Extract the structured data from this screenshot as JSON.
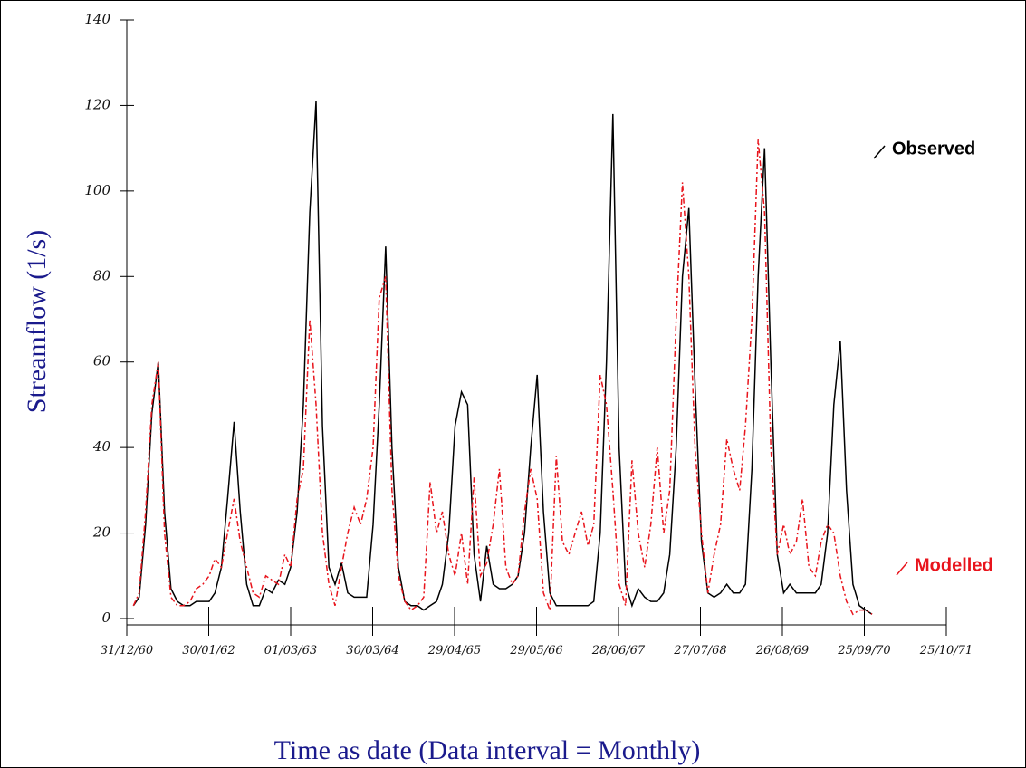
{
  "chart_data": {
    "type": "line",
    "y_label": "Streamflow (1/s)",
    "x_label": "Time as date (Data interval = Monthly)",
    "ylim": [
      0,
      140
    ],
    "yticks": [
      0,
      20,
      40,
      60,
      80,
      100,
      120,
      140
    ],
    "xlim": [
      "1960-12-31",
      "1971-10-25"
    ],
    "xticks": [
      {
        "value": "1960-12-31",
        "label": "31/12/60"
      },
      {
        "value": "1962-01-30",
        "label": "30/01/62"
      },
      {
        "value": "1963-03-01",
        "label": "01/03/63"
      },
      {
        "value": "1964-03-30",
        "label": "30/03/64"
      },
      {
        "value": "1965-04-29",
        "label": "29/04/65"
      },
      {
        "value": "1966-05-29",
        "label": "29/05/66"
      },
      {
        "value": "1967-06-28",
        "label": "28/06/67"
      },
      {
        "value": "1968-07-27",
        "label": "27/07/68"
      },
      {
        "value": "1969-08-26",
        "label": "26/08/69"
      },
      {
        "value": "1970-09-25",
        "label": "25/09/70"
      },
      {
        "value": "1971-10-25",
        "label": "25/10/71"
      }
    ],
    "x": [
      "1961-02",
      "1961-03",
      "1961-04",
      "1961-05",
      "1961-06",
      "1961-07",
      "1961-08",
      "1961-09",
      "1961-10",
      "1961-11",
      "1961-12",
      "1962-01",
      "1962-02",
      "1962-03",
      "1962-04",
      "1962-05",
      "1962-06",
      "1962-07",
      "1962-08",
      "1962-09",
      "1962-10",
      "1962-11",
      "1962-12",
      "1963-01",
      "1963-02",
      "1963-03",
      "1963-04",
      "1963-05",
      "1963-06",
      "1963-07",
      "1963-08",
      "1963-09",
      "1963-10",
      "1963-11",
      "1963-12",
      "1964-01",
      "1964-02",
      "1964-03",
      "1964-04",
      "1964-05",
      "1964-06",
      "1964-07",
      "1964-08",
      "1964-09",
      "1964-10",
      "1964-11",
      "1964-12",
      "1965-01",
      "1965-02",
      "1965-03",
      "1965-04",
      "1965-05",
      "1965-06",
      "1965-07",
      "1965-08",
      "1965-09",
      "1965-10",
      "1965-11",
      "1965-12",
      "1966-01",
      "1966-02",
      "1966-03",
      "1966-04",
      "1966-05",
      "1966-06",
      "1966-07",
      "1966-08",
      "1966-09",
      "1966-10",
      "1966-11",
      "1966-12",
      "1967-01",
      "1967-02",
      "1967-03",
      "1967-04",
      "1967-05",
      "1967-06",
      "1967-07",
      "1967-08",
      "1967-09",
      "1967-10",
      "1967-11",
      "1967-12",
      "1968-01",
      "1968-02",
      "1968-03",
      "1968-04",
      "1968-05",
      "1968-06",
      "1968-07",
      "1968-08",
      "1968-09",
      "1968-10",
      "1968-11",
      "1968-12",
      "1969-01",
      "1969-02",
      "1969-03",
      "1969-04",
      "1969-05",
      "1969-06",
      "1969-07",
      "1969-08",
      "1969-09",
      "1969-10",
      "1969-11",
      "1969-12",
      "1970-01",
      "1970-02",
      "1970-03",
      "1970-04",
      "1970-05",
      "1970-06",
      "1970-07",
      "1970-08",
      "1970-09",
      "1970-10",
      "1970-11"
    ],
    "series": [
      {
        "name": "Observed",
        "color": "#000000",
        "dash": false,
        "values": [
          3,
          5,
          22,
          48,
          60,
          25,
          7,
          4,
          3,
          3,
          4,
          4,
          4,
          6,
          12,
          28,
          46,
          25,
          8,
          3,
          3,
          7,
          6,
          9,
          8,
          12,
          25,
          50,
          95,
          121,
          45,
          12,
          8,
          13,
          6,
          5,
          5,
          5,
          22,
          50,
          87,
          40,
          12,
          4,
          3,
          3,
          2,
          3,
          4,
          8,
          20,
          45,
          53,
          50,
          15,
          4,
          17,
          8,
          7,
          7,
          8,
          10,
          20,
          40,
          57,
          25,
          6,
          3,
          3,
          3,
          3,
          3,
          3,
          4,
          20,
          60,
          118,
          40,
          8,
          3,
          7,
          5,
          4,
          4,
          6,
          15,
          40,
          80,
          96,
          55,
          18,
          6,
          5,
          6,
          8,
          6,
          6,
          8,
          35,
          80,
          110,
          60,
          15,
          6,
          8,
          6,
          6,
          6,
          6,
          8,
          20,
          50,
          65,
          30,
          8,
          3,
          2,
          1
        ]
      },
      {
        "name": "Modelled",
        "color": "#e8141c",
        "dash": true,
        "values": [
          3,
          6,
          25,
          50,
          60,
          20,
          5,
          3,
          3,
          4,
          7,
          8,
          10,
          14,
          12,
          20,
          28,
          18,
          12,
          6,
          5,
          10,
          9,
          8,
          15,
          12,
          28,
          35,
          70,
          50,
          20,
          8,
          3,
          12,
          20,
          26,
          22,
          28,
          40,
          75,
          80,
          30,
          10,
          4,
          2,
          3,
          5,
          32,
          20,
          25,
          15,
          10,
          20,
          8,
          33,
          10,
          13,
          22,
          35,
          12,
          8,
          10,
          25,
          35,
          28,
          6,
          2,
          38,
          18,
          15,
          20,
          25,
          17,
          22,
          57,
          50,
          30,
          8,
          3,
          37,
          20,
          12,
          22,
          40,
          20,
          30,
          70,
          102,
          80,
          40,
          20,
          6,
          15,
          22,
          42,
          35,
          30,
          45,
          70,
          112,
          95,
          40,
          15,
          22,
          15,
          18,
          28,
          12,
          10,
          18,
          22,
          20,
          10,
          4,
          1,
          2,
          2,
          1
        ]
      }
    ]
  }
}
